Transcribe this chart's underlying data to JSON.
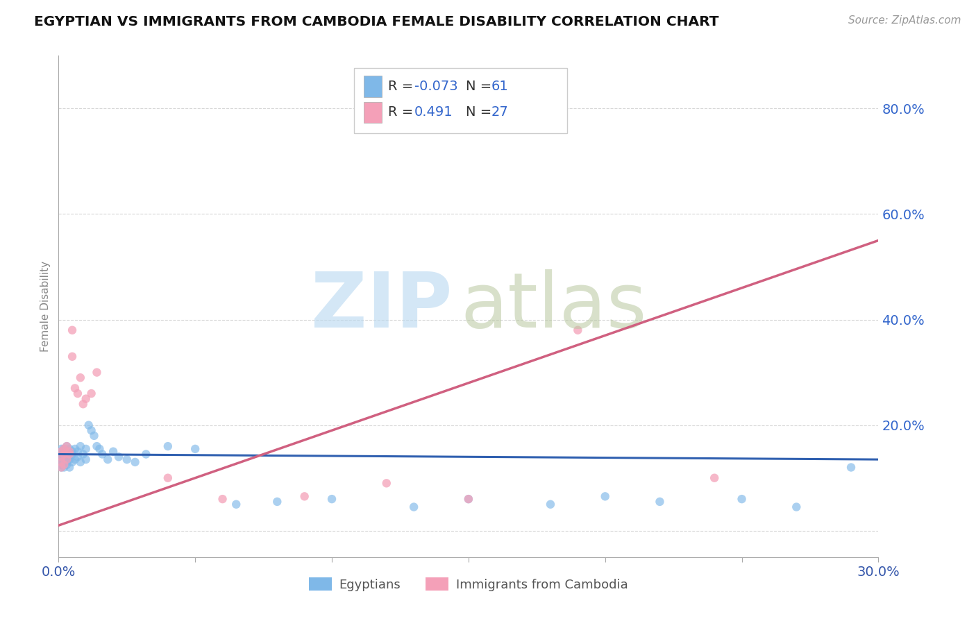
{
  "title": "EGYPTIAN VS IMMIGRANTS FROM CAMBODIA FEMALE DISABILITY CORRELATION CHART",
  "source": "Source: ZipAtlas.com",
  "ylabel": "Female Disability",
  "xlim": [
    0.0,
    0.3
  ],
  "ylim": [
    -0.05,
    0.9
  ],
  "xticks": [
    0.0,
    0.05,
    0.1,
    0.15,
    0.2,
    0.25,
    0.3
  ],
  "xticklabels": [
    "0.0%",
    "",
    "",
    "",
    "",
    "",
    "30.0%"
  ],
  "ytick_positions": [
    0.0,
    0.2,
    0.4,
    0.6,
    0.8
  ],
  "ytick_labels": [
    "",
    "20.0%",
    "40.0%",
    "60.0%",
    "80.0%"
  ],
  "grid_color": "#cccccc",
  "background_color": "#ffffff",
  "egyptians_color": "#7fb8e8",
  "cambodia_color": "#f4a0b8",
  "trend_blue_color": "#3060b0",
  "trend_pink_color": "#d06080",
  "egypt_x": [
    0.001,
    0.001,
    0.001,
    0.001,
    0.001,
    0.001,
    0.001,
    0.001,
    0.001,
    0.002,
    0.002,
    0.002,
    0.002,
    0.002,
    0.002,
    0.003,
    0.003,
    0.003,
    0.003,
    0.003,
    0.004,
    0.004,
    0.004,
    0.004,
    0.005,
    0.005,
    0.005,
    0.006,
    0.006,
    0.007,
    0.007,
    0.008,
    0.008,
    0.009,
    0.01,
    0.01,
    0.011,
    0.012,
    0.013,
    0.014,
    0.015,
    0.016,
    0.018,
    0.02,
    0.022,
    0.025,
    0.028,
    0.032,
    0.04,
    0.05,
    0.065,
    0.08,
    0.1,
    0.13,
    0.15,
    0.18,
    0.2,
    0.22,
    0.25,
    0.27,
    0.29
  ],
  "egypt_y": [
    0.13,
    0.14,
    0.15,
    0.12,
    0.145,
    0.135,
    0.155,
    0.125,
    0.14,
    0.15,
    0.13,
    0.145,
    0.12,
    0.155,
    0.135,
    0.14,
    0.15,
    0.125,
    0.16,
    0.13,
    0.145,
    0.135,
    0.155,
    0.12,
    0.15,
    0.13,
    0.145,
    0.135,
    0.155,
    0.14,
    0.15,
    0.13,
    0.16,
    0.145,
    0.135,
    0.155,
    0.2,
    0.19,
    0.18,
    0.16,
    0.155,
    0.145,
    0.135,
    0.15,
    0.14,
    0.135,
    0.13,
    0.145,
    0.16,
    0.155,
    0.05,
    0.055,
    0.06,
    0.045,
    0.06,
    0.05,
    0.065,
    0.055,
    0.06,
    0.045,
    0.12
  ],
  "cambodia_x": [
    0.001,
    0.001,
    0.001,
    0.001,
    0.002,
    0.002,
    0.002,
    0.003,
    0.003,
    0.004,
    0.004,
    0.005,
    0.005,
    0.006,
    0.007,
    0.008,
    0.009,
    0.01,
    0.012,
    0.014,
    0.04,
    0.06,
    0.09,
    0.12,
    0.15,
    0.19,
    0.24
  ],
  "cambodia_y": [
    0.12,
    0.14,
    0.15,
    0.13,
    0.145,
    0.155,
    0.125,
    0.16,
    0.135,
    0.145,
    0.15,
    0.33,
    0.38,
    0.27,
    0.26,
    0.29,
    0.24,
    0.25,
    0.26,
    0.3,
    0.1,
    0.06,
    0.065,
    0.09,
    0.06,
    0.38,
    0.1
  ]
}
